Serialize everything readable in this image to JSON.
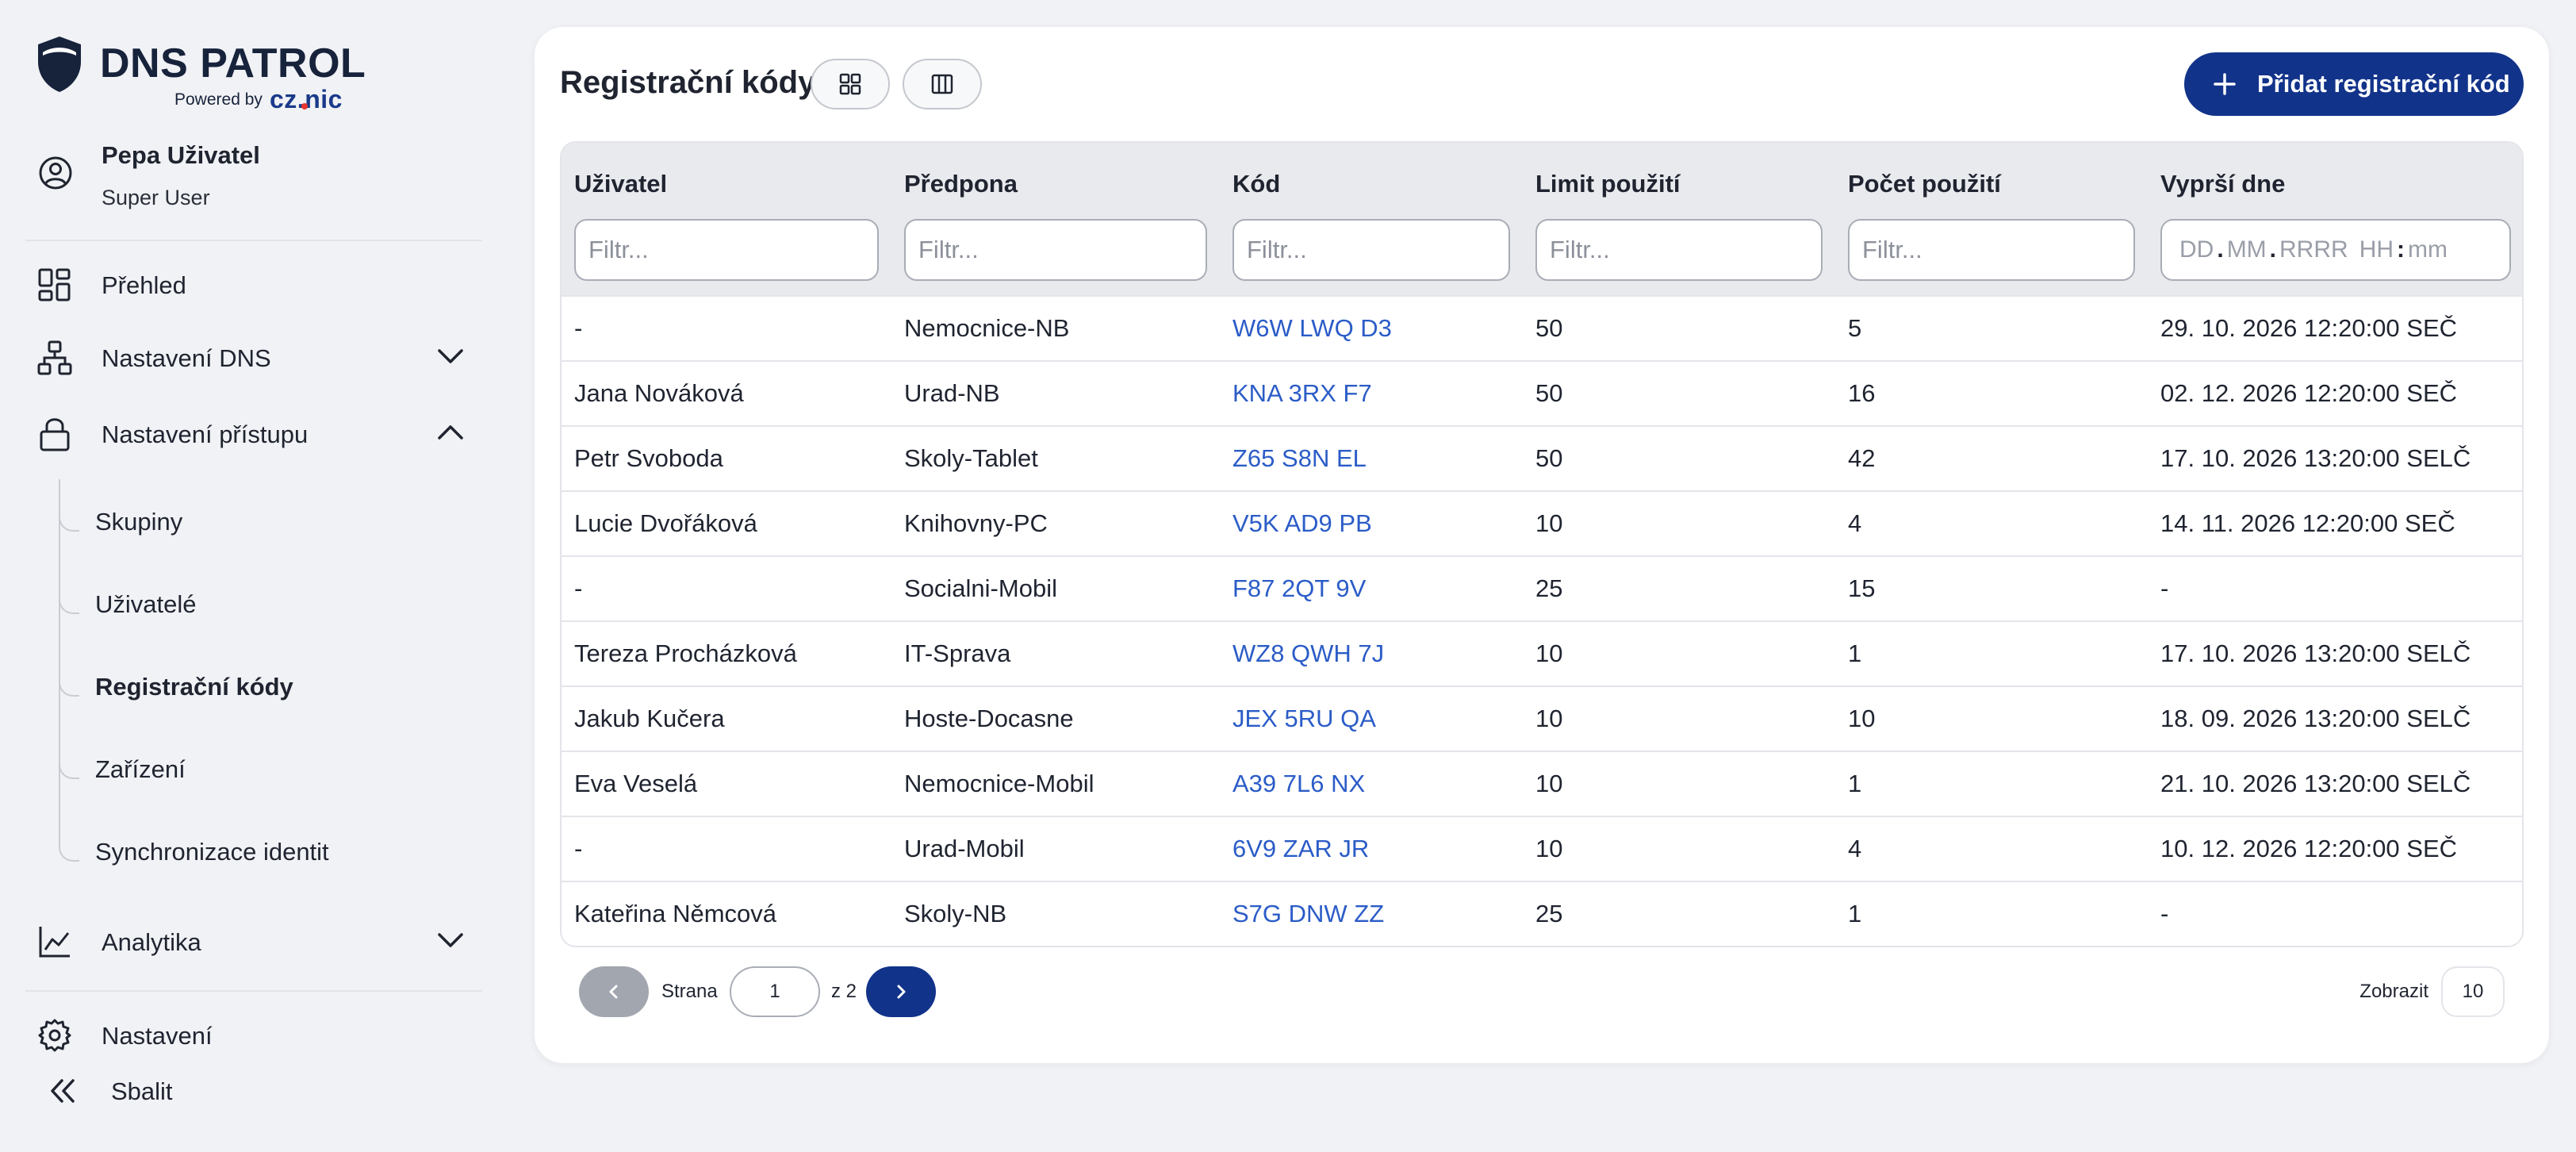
{
  "brand": {
    "name": "DNS PATROL",
    "powered_by": "Powered by",
    "partner": "CZ.NIC"
  },
  "user": {
    "name": "Pepa Uživatel",
    "role": "Super User"
  },
  "nav": {
    "overview": "Přehled",
    "dns_settings": "Nastavení DNS",
    "access_settings": "Nastavení přístupu",
    "sub": {
      "groups": "Skupiny",
      "users": "Uživatelé",
      "registration_codes": "Registrační kódy",
      "devices": "Zařízení",
      "identity_sync": "Synchronizace identit"
    },
    "analytics": "Analytika",
    "settings": "Nastavení",
    "collapse": "Sbalit"
  },
  "page": {
    "title": "Registrační kódy",
    "add_button": "Přidat registrační kód"
  },
  "table": {
    "columns": [
      "Uživatel",
      "Předpona",
      "Kód",
      "Limit použití",
      "Počet použití",
      "Vyprší dne"
    ],
    "filter_placeholder": "Filtr...",
    "date_placeholder": {
      "dd": "DD",
      "mm": "MM",
      "yyyy": "RRRR",
      "hh": "HH",
      "min": "mm"
    },
    "rows": [
      [
        "-",
        "Nemocnice-NB",
        "W6W LWQ D3",
        "50",
        "5",
        "29. 10. 2026 12:20:00 SEČ"
      ],
      [
        "Jana Nováková",
        "Urad-NB",
        "KNA 3RX F7",
        "50",
        "16",
        "02. 12. 2026 12:20:00 SEČ"
      ],
      [
        "Petr Svoboda",
        "Skoly-Tablet",
        "Z65 S8N EL",
        "50",
        "42",
        "17. 10. 2026 13:20:00 SELČ"
      ],
      [
        "Lucie Dvořáková",
        "Knihovny-PC",
        "V5K AD9 PB",
        "10",
        "4",
        "14. 11. 2026 12:20:00 SEČ"
      ],
      [
        "-",
        "Socialni-Mobil",
        "F87 2QT 9V",
        "25",
        "15",
        "-"
      ],
      [
        "Tereza Procházková",
        "IT-Sprava",
        "WZ8 QWH 7J",
        "10",
        "1",
        "17. 10. 2026 13:20:00 SELČ"
      ],
      [
        "Jakub Kučera",
        "Hoste-Docasne",
        "JEX 5RU QA",
        "10",
        "10",
        "18. 09. 2026 13:20:00 SELČ"
      ],
      [
        "Eva Veselá",
        "Nemocnice-Mobil",
        "A39 7L6 NX",
        "10",
        "1",
        "21. 10. 2026 13:20:00 SELČ"
      ],
      [
        "-",
        "Urad-Mobil",
        "6V9 ZAR JR",
        "10",
        "4",
        "10. 12. 2026 12:20:00 SEČ"
      ],
      [
        "Kateřina Němcová",
        "Skoly-NB",
        "S7G DNW ZZ",
        "25",
        "1",
        "-"
      ]
    ]
  },
  "pagination": {
    "page_label": "Strana",
    "current_page": "1",
    "of_label": "z 2",
    "show_label": "Zobrazit",
    "page_size": "10"
  },
  "colors": {
    "primary": "#12338a",
    "link": "#2b5cc7",
    "background": "#f1f2f5"
  }
}
